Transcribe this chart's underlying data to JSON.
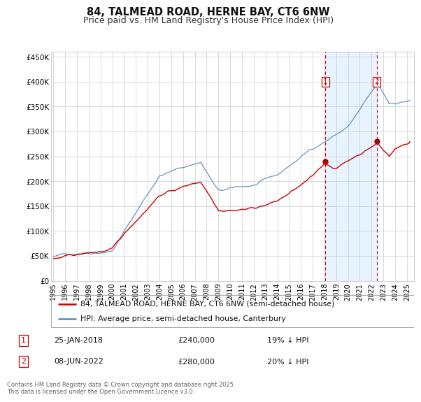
{
  "title": "84, TALMEAD ROAD, HERNE BAY, CT6 6NW",
  "subtitle": "Price paid vs. HM Land Registry's House Price Index (HPI)",
  "ylabel_ticks": [
    "£0",
    "£50K",
    "£100K",
    "£150K",
    "£200K",
    "£250K",
    "£300K",
    "£350K",
    "£400K",
    "£450K"
  ],
  "ytick_values": [
    0,
    50000,
    100000,
    150000,
    200000,
    250000,
    300000,
    350000,
    400000,
    450000
  ],
  "ylim": [
    0,
    460000
  ],
  "xlim_start": 1994.8,
  "xlim_end": 2025.6,
  "xtick_years": [
    1995,
    1996,
    1997,
    1998,
    1999,
    2000,
    2001,
    2002,
    2003,
    2004,
    2005,
    2006,
    2007,
    2008,
    2009,
    2010,
    2011,
    2012,
    2013,
    2014,
    2015,
    2016,
    2017,
    2018,
    2019,
    2020,
    2021,
    2022,
    2023,
    2024,
    2025
  ],
  "red_line_color": "#cc0000",
  "blue_line_color": "#5588bb",
  "blue_fill_color": "#ddeeff",
  "vline_color": "#cc0000",
  "marker_color": "#aa0000",
  "sale1_x": 2018.07,
  "sale1_y": 240000,
  "sale2_x": 2022.44,
  "sale2_y": 280000,
  "legend_red_label": "84, TALMEAD ROAD, HERNE BAY, CT6 6NW (semi-detached house)",
  "legend_blue_label": "HPI: Average price, semi-detached house, Canterbury",
  "annotation1_date": "25-JAN-2018",
  "annotation1_price": "£240,000",
  "annotation1_hpi": "19% ↓ HPI",
  "annotation2_date": "08-JUN-2022",
  "annotation2_price": "£280,000",
  "annotation2_hpi": "20% ↓ HPI",
  "footnote": "Contains HM Land Registry data © Crown copyright and database right 2025.\nThis data is licensed under the Open Government Licence v3.0.",
  "background_color": "#ffffff",
  "grid_color": "#cccccc"
}
